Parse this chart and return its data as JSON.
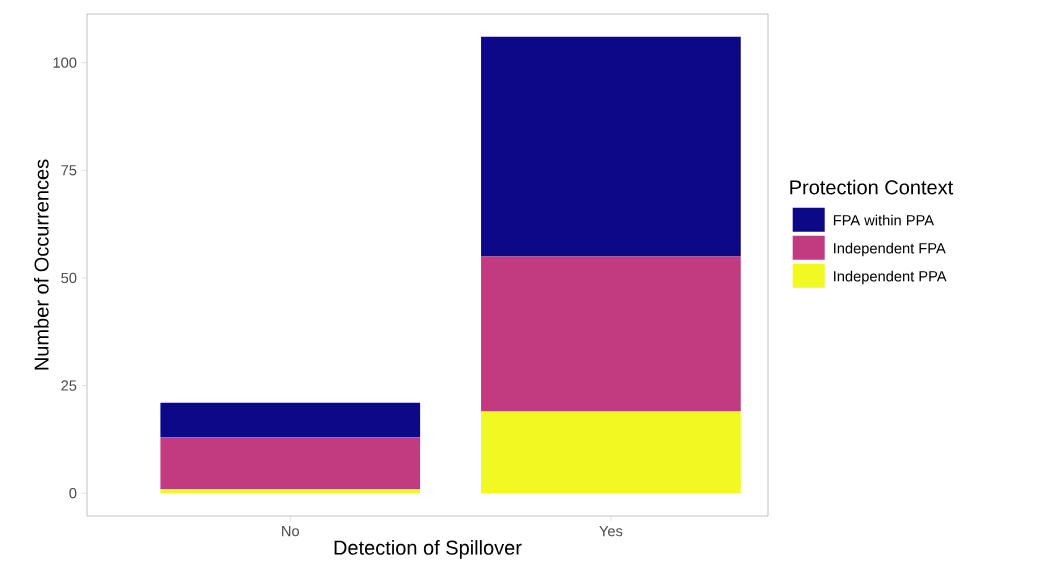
{
  "chart_data": {
    "type": "bar",
    "stacked": true,
    "xlabel": "Detection of Spillover",
    "ylabel": "Number of Occurrences",
    "legend_title": "Protection Context",
    "legend": "right",
    "categories": [
      "No",
      "Yes"
    ],
    "series": [
      {
        "name": "Independent PPA",
        "color": "#f0f921",
        "values": [
          1,
          19
        ]
      },
      {
        "name": "Independent FPA",
        "color": "#c23b80",
        "values": [
          12,
          36
        ]
      },
      {
        "name": "FPA within PPA",
        "color": "#0d0887",
        "values": [
          8,
          51
        ]
      }
    ],
    "ylim": [
      -5.3,
      111.3
    ],
    "yticks": [
      0,
      25,
      50,
      75,
      100
    ],
    "grid": false
  }
}
